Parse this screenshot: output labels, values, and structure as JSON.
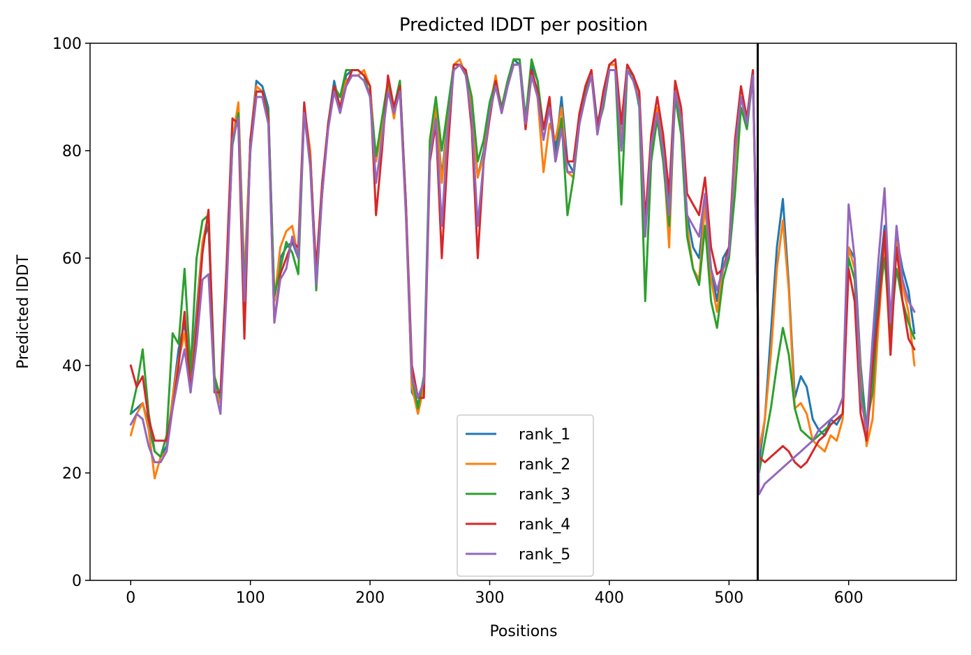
{
  "chart_data": {
    "type": "line",
    "title": "Predicted lDDT per position",
    "xlabel": "Positions",
    "ylabel": "Predicted lDDT",
    "xlim": [
      -34,
      690
    ],
    "ylim": [
      0,
      100
    ],
    "xticks": [
      0,
      100,
      200,
      300,
      400,
      500,
      600
    ],
    "yticks": [
      0,
      20,
      40,
      60,
      80,
      100
    ],
    "vline_x": 524,
    "legend_position": "lower center",
    "x": [
      0,
      5,
      10,
      15,
      20,
      25,
      30,
      35,
      40,
      45,
      50,
      55,
      60,
      65,
      70,
      75,
      80,
      85,
      90,
      95,
      100,
      105,
      110,
      115,
      120,
      125,
      130,
      135,
      140,
      145,
      150,
      155,
      160,
      165,
      170,
      175,
      180,
      185,
      190,
      195,
      200,
      205,
      210,
      215,
      220,
      225,
      230,
      235,
      240,
      245,
      250,
      255,
      260,
      265,
      270,
      275,
      280,
      285,
      290,
      295,
      300,
      305,
      310,
      315,
      320,
      325,
      330,
      335,
      340,
      345,
      350,
      355,
      360,
      365,
      370,
      375,
      380,
      385,
      390,
      395,
      400,
      405,
      410,
      415,
      420,
      425,
      430,
      435,
      440,
      445,
      450,
      455,
      460,
      465,
      470,
      475,
      480,
      485,
      490,
      495,
      500,
      505,
      510,
      515,
      520,
      524,
      525,
      530,
      535,
      540,
      545,
      550,
      555,
      560,
      565,
      570,
      575,
      580,
      585,
      590,
      595,
      600,
      605,
      610,
      615,
      620,
      625,
      630,
      635,
      640,
      645,
      650,
      655
    ],
    "series": [
      {
        "name": "rank_1",
        "color": "#1f77b4",
        "values": [
          31,
          32,
          33,
          29,
          24,
          23,
          25,
          34,
          43,
          48,
          37,
          50,
          63,
          66,
          37,
          33,
          55,
          82,
          88,
          55,
          82,
          93,
          92,
          88,
          52,
          60,
          62,
          63,
          60,
          88,
          80,
          56,
          72,
          85,
          93,
          88,
          94,
          95,
          95,
          94,
          92,
          78,
          84,
          92,
          88,
          93,
          70,
          35,
          33,
          36,
          80,
          88,
          75,
          86,
          96,
          96,
          95,
          88,
          75,
          80,
          88,
          93,
          88,
          93,
          97,
          96,
          85,
          96,
          93,
          84,
          89,
          80,
          90,
          78,
          76,
          86,
          91,
          95,
          85,
          90,
          96,
          96,
          82,
          96,
          94,
          90,
          65,
          80,
          88,
          80,
          70,
          92,
          85,
          68,
          62,
          60,
          70,
          58,
          52,
          60,
          62,
          80,
          90,
          86,
          95,
          52,
          22,
          30,
          46,
          62,
          71,
          55,
          34,
          38,
          36,
          30,
          28,
          27,
          30,
          29,
          31,
          62,
          60,
          40,
          28,
          42,
          55,
          66,
          48,
          64,
          58,
          54,
          46
        ]
      },
      {
        "name": "rank_2",
        "color": "#ff7f0e",
        "values": [
          27,
          31,
          33,
          28,
          19,
          23,
          24,
          34,
          41,
          46,
          36,
          48,
          63,
          68,
          36,
          33,
          54,
          82,
          89,
          56,
          82,
          92,
          91,
          87,
          52,
          62,
          65,
          66,
          60,
          88,
          80,
          55,
          73,
          85,
          92,
          88,
          93,
          94,
          94,
          95,
          92,
          78,
          84,
          92,
          86,
          93,
          68,
          36,
          31,
          36,
          80,
          88,
          74,
          85,
          96,
          97,
          94,
          88,
          75,
          79,
          88,
          94,
          87,
          92,
          97,
          97,
          84,
          94,
          90,
          76,
          85,
          82,
          88,
          76,
          75,
          86,
          92,
          95,
          84,
          91,
          96,
          96,
          81,
          96,
          94,
          90,
          65,
          80,
          88,
          80,
          62,
          93,
          85,
          66,
          58,
          56,
          70,
          56,
          50,
          58,
          60,
          78,
          90,
          85,
          94,
          50,
          24,
          30,
          42,
          58,
          67,
          54,
          32,
          33,
          31,
          26,
          25,
          24,
          27,
          26,
          30,
          62,
          58,
          38,
          25,
          30,
          48,
          62,
          42,
          63,
          55,
          50,
          40
        ]
      },
      {
        "name": "rank_3",
        "color": "#2ca02c",
        "values": [
          31,
          36,
          43,
          31,
          24,
          23,
          27,
          46,
          44,
          58,
          39,
          60,
          67,
          68,
          38,
          34,
          56,
          81,
          87,
          54,
          80,
          91,
          91,
          87,
          53,
          58,
          63,
          61,
          57,
          87,
          78,
          54,
          72,
          85,
          92,
          90,
          95,
          95,
          95,
          94,
          90,
          79,
          86,
          93,
          88,
          93,
          70,
          38,
          32,
          38,
          82,
          90,
          80,
          88,
          96,
          96,
          95,
          90,
          78,
          82,
          89,
          93,
          88,
          93,
          97,
          97,
          86,
          97,
          93,
          84,
          89,
          78,
          86,
          68,
          75,
          85,
          91,
          94,
          84,
          88,
          95,
          95,
          70,
          95,
          94,
          88,
          52,
          78,
          86,
          78,
          66,
          90,
          83,
          64,
          58,
          55,
          66,
          52,
          47,
          56,
          60,
          72,
          88,
          84,
          94,
          50,
          20,
          26,
          32,
          40,
          47,
          42,
          32,
          28,
          27,
          26,
          27,
          28,
          29,
          30,
          31,
          60,
          56,
          36,
          29,
          35,
          52,
          60,
          46,
          58,
          52,
          48,
          45
        ]
      },
      {
        "name": "rank_4",
        "color": "#d62728",
        "values": [
          40,
          36,
          38,
          30,
          26,
          26,
          26,
          32,
          40,
          50,
          35,
          47,
          61,
          69,
          35,
          35,
          58,
          86,
          85,
          45,
          82,
          91,
          91,
          86,
          48,
          57,
          60,
          63,
          62,
          89,
          78,
          58,
          74,
          85,
          92,
          88,
          92,
          95,
          95,
          94,
          92,
          68,
          80,
          94,
          88,
          92,
          70,
          40,
          34,
          34,
          78,
          85,
          60,
          80,
          96,
          96,
          95,
          84,
          60,
          78,
          86,
          93,
          87,
          92,
          96,
          96,
          84,
          95,
          91,
          84,
          90,
          78,
          84,
          78,
          78,
          87,
          92,
          95,
          84,
          91,
          96,
          97,
          85,
          96,
          94,
          91,
          67,
          83,
          90,
          83,
          72,
          93,
          88,
          72,
          70,
          68,
          75,
          62,
          57,
          58,
          62,
          82,
          92,
          86,
          95,
          52,
          23,
          22,
          23,
          24,
          25,
          24,
          22,
          21,
          22,
          24,
          26,
          27,
          29,
          30,
          31,
          58,
          52,
          31,
          26,
          40,
          50,
          65,
          42,
          62,
          52,
          45,
          43
        ]
      },
      {
        "name": "rank_5",
        "color": "#9467bd",
        "values": [
          29,
          31,
          30,
          25,
          22,
          22,
          24,
          32,
          38,
          43,
          35,
          44,
          56,
          57,
          36,
          31,
          53,
          82,
          86,
          52,
          80,
          90,
          90,
          85,
          48,
          56,
          58,
          64,
          60,
          87,
          77,
          55,
          72,
          84,
          91,
          87,
          92,
          94,
          94,
          93,
          90,
          74,
          82,
          91,
          87,
          91,
          68,
          38,
          34,
          37,
          79,
          86,
          66,
          84,
          95,
          96,
          94,
          86,
          66,
          78,
          87,
          92,
          87,
          92,
          96,
          96,
          85,
          94,
          90,
          82,
          88,
          78,
          84,
          76,
          76,
          85,
          90,
          94,
          83,
          89,
          95,
          95,
          80,
          95,
          93,
          89,
          64,
          81,
          87,
          80,
          68,
          91,
          86,
          68,
          66,
          64,
          72,
          58,
          54,
          58,
          61,
          80,
          90,
          85,
          94,
          50,
          16,
          18,
          19,
          20,
          21,
          22,
          23,
          24,
          25,
          26,
          28,
          29,
          30,
          31,
          34,
          70,
          60,
          34,
          28,
          45,
          60,
          73,
          48,
          66,
          56,
          52,
          50
        ]
      }
    ]
  }
}
